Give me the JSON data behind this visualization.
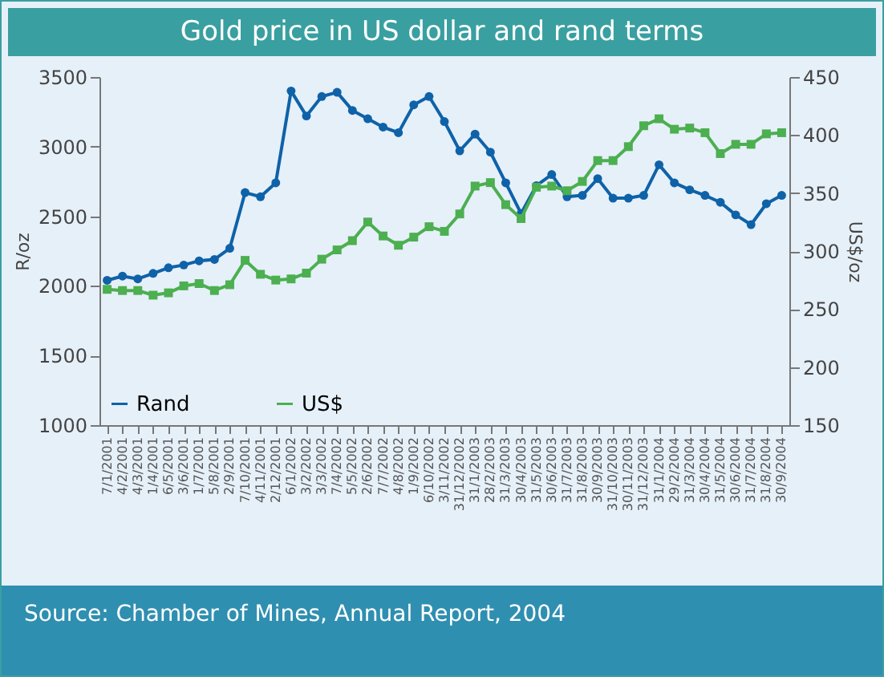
{
  "chart_data": {
    "type": "line",
    "title": "Gold price in US dollar and rand terms",
    "categories": [
      "7/1/2001",
      "4/2/2001",
      "4/3/2001",
      "1/4/2001",
      "6/5/2001",
      "3/6/2001",
      "1/7/2001",
      "5/8/2001",
      "2/9/2001",
      "7/10/2001",
      "4/11/2001",
      "2/12/2001",
      "6/1/2002",
      "3/2/2002",
      "3/3/2002",
      "7/4/2002",
      "5/5/2002",
      "2/6/2002",
      "7/7/2002",
      "4/8/2002",
      "1/9/2002",
      "6/10/2002",
      "3/11/2002",
      "31/12/2002",
      "31/1/2003",
      "28/2/2003",
      "31/3/2003",
      "30/4/2003",
      "31/5/2003",
      "30/6/2003",
      "31/7/2003",
      "31/8/2003",
      "30/9/2003",
      "31/10/2003",
      "30/11/2003",
      "31/12/2003",
      "31/1/2004",
      "29/2/2004",
      "31/3/2004",
      "30/4/2004",
      "31/5/2004",
      "30/6/2004",
      "31/7/2004",
      "31/8/2004",
      "30/9/2004"
    ],
    "series": [
      {
        "name": "Rand",
        "color": "#0f62a8",
        "marker": "circle",
        "values": [
          2040,
          2070,
          2050,
          2090,
          2130,
          2150,
          2180,
          2190,
          2270,
          2670,
          2640,
          2740,
          3400,
          3220,
          3360,
          3390,
          3260,
          3200,
          3140,
          3100,
          3300,
          3360,
          3180,
          2970,
          3090,
          2960,
          2740,
          2520,
          2720,
          2800,
          2640,
          2650,
          2770,
          2630,
          2630,
          2650,
          2870,
          2740,
          2690,
          2650,
          2600,
          2510,
          2440,
          2590,
          2650
        ]
      },
      {
        "name": "US$",
        "color": "#4caf50",
        "marker": "square",
        "axis": "y2",
        "values": [
          267,
          266,
          266,
          262,
          264,
          270,
          272,
          266,
          271,
          292,
          280,
          275,
          276,
          281,
          293,
          301,
          309,
          325,
          313,
          305,
          312,
          321,
          317,
          332,
          356,
          359,
          340,
          328,
          355,
          356,
          352,
          360,
          378,
          378,
          390,
          408,
          414,
          405,
          406,
          402,
          384,
          392,
          392,
          401,
          402
        ]
      }
    ],
    "ylabel": "R/oz",
    "y2label": "US$/oz",
    "ylim": [
      1000,
      3500
    ],
    "yticks": [
      1000,
      1500,
      2000,
      2500,
      3000,
      3500
    ],
    "y2lim": [
      150,
      450
    ],
    "y2ticks": [
      150,
      200,
      250,
      300,
      350,
      400,
      450
    ],
    "legend": "bottom left",
    "annotations": [
      "Source: Chamber of Mines, Annual Report, 2004"
    ]
  }
}
